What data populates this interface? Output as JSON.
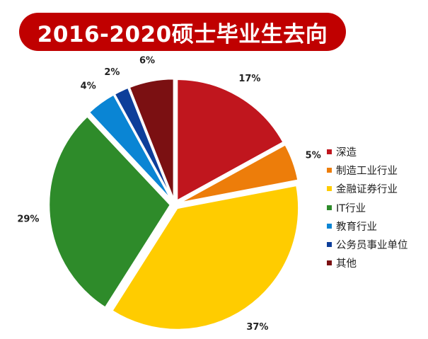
{
  "title": "2016-2020硕士毕业生去向",
  "colors": {
    "banner": "#c00000",
    "banner_text": "#ffffff"
  },
  "chart_data": {
    "type": "pie",
    "title": "2016-2020硕士毕业生去向",
    "start_angle_deg": 0,
    "direction": "clockwise",
    "legend_position": "right",
    "slices": [
      {
        "label": "深造",
        "value": 17,
        "display": "17%",
        "color": "#c0161e"
      },
      {
        "label": "制造工业行业",
        "value": 5,
        "display": "5%",
        "color": "#ed7d0a"
      },
      {
        "label": "金融证券行业",
        "value": 37,
        "display": "37%",
        "color": "#ffcc00"
      },
      {
        "label": "IT行业",
        "value": 29,
        "display": "29%",
        "color": "#2e8b2a"
      },
      {
        "label": "教育行业",
        "value": 4,
        "display": "4%",
        "color": "#0a85d4"
      },
      {
        "label": "公务员事业单位",
        "value": 2,
        "display": "2%",
        "color": "#0d3e9a"
      },
      {
        "label": "其他",
        "value": 6,
        "display": "6%",
        "color": "#7b1012"
      }
    ]
  }
}
